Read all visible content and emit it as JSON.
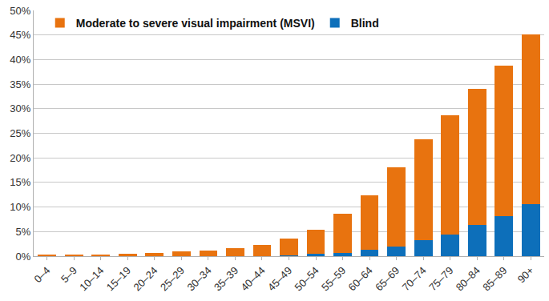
{
  "chart_data": {
    "type": "bar",
    "stacked": true,
    "grid": true,
    "legend": "top left",
    "categories": [
      "0–4",
      "5–9",
      "10–14",
      "15–19",
      "20–24",
      "25–29",
      "30–34",
      "35–39",
      "40–44",
      "45–49",
      "50–54",
      "55–59",
      "60–64",
      "65–69",
      "70–74",
      "75–79",
      "80–84",
      "85–89",
      "90+"
    ],
    "series": [
      {
        "name": "Moderate to severe visual impairment (MSVI)",
        "color": "#e8730f",
        "values": [
          0.28,
          0.28,
          0.38,
          0.48,
          0.67,
          0.86,
          1.15,
          1.54,
          2.12,
          3.5,
          4.9,
          8.0,
          11.1,
          16.1,
          20.6,
          24.3,
          27.7,
          30.6,
          34.5
        ]
      },
      {
        "name": "Blind",
        "color": "#0d6fba",
        "values": [
          0.02,
          0.02,
          0.02,
          0.02,
          0.03,
          0.04,
          0.05,
          0.06,
          0.08,
          0.1,
          0.5,
          0.7,
          1.3,
          2.0,
          3.2,
          4.4,
          6.3,
          8.1,
          10.6
        ]
      }
    ],
    "ylim": [
      0,
      50
    ],
    "yticks": [
      {
        "value": 0,
        "label": "0%"
      },
      {
        "value": 5,
        "label": "5%"
      },
      {
        "value": 10,
        "label": "10%"
      },
      {
        "value": 15,
        "label": "15%"
      },
      {
        "value": 20,
        "label": "20%"
      },
      {
        "value": 25,
        "label": "25%"
      },
      {
        "value": 30,
        "label": "30%"
      },
      {
        "value": 35,
        "label": "35%"
      },
      {
        "value": 40,
        "label": "40%"
      },
      {
        "value": 45,
        "label": "45%"
      },
      {
        "value": 50,
        "label": "50%"
      }
    ]
  }
}
